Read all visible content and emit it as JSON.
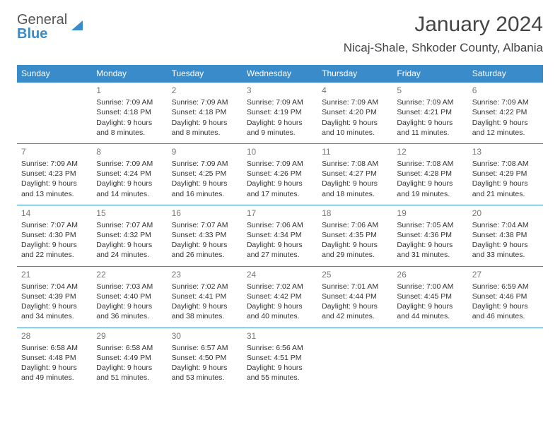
{
  "logo": {
    "line1": "General",
    "line2": "Blue"
  },
  "title": "January 2024",
  "location": "Nicaj-Shale, Shkoder County, Albania",
  "daynames": [
    "Sunday",
    "Monday",
    "Tuesday",
    "Wednesday",
    "Thursday",
    "Friday",
    "Saturday"
  ],
  "colors": {
    "header_bg": "#3a8bc9",
    "header_text": "#ffffff",
    "border": "#3a8bc9",
    "text": "#333333",
    "daynum": "#777777"
  },
  "days": [
    {
      "n": "",
      "sr": "",
      "ss": "",
      "dl1": "",
      "dl2": ""
    },
    {
      "n": "1",
      "sr": "Sunrise: 7:09 AM",
      "ss": "Sunset: 4:18 PM",
      "dl1": "Daylight: 9 hours",
      "dl2": "and 8 minutes."
    },
    {
      "n": "2",
      "sr": "Sunrise: 7:09 AM",
      "ss": "Sunset: 4:18 PM",
      "dl1": "Daylight: 9 hours",
      "dl2": "and 8 minutes."
    },
    {
      "n": "3",
      "sr": "Sunrise: 7:09 AM",
      "ss": "Sunset: 4:19 PM",
      "dl1": "Daylight: 9 hours",
      "dl2": "and 9 minutes."
    },
    {
      "n": "4",
      "sr": "Sunrise: 7:09 AM",
      "ss": "Sunset: 4:20 PM",
      "dl1": "Daylight: 9 hours",
      "dl2": "and 10 minutes."
    },
    {
      "n": "5",
      "sr": "Sunrise: 7:09 AM",
      "ss": "Sunset: 4:21 PM",
      "dl1": "Daylight: 9 hours",
      "dl2": "and 11 minutes."
    },
    {
      "n": "6",
      "sr": "Sunrise: 7:09 AM",
      "ss": "Sunset: 4:22 PM",
      "dl1": "Daylight: 9 hours",
      "dl2": "and 12 minutes."
    },
    {
      "n": "7",
      "sr": "Sunrise: 7:09 AM",
      "ss": "Sunset: 4:23 PM",
      "dl1": "Daylight: 9 hours",
      "dl2": "and 13 minutes."
    },
    {
      "n": "8",
      "sr": "Sunrise: 7:09 AM",
      "ss": "Sunset: 4:24 PM",
      "dl1": "Daylight: 9 hours",
      "dl2": "and 14 minutes."
    },
    {
      "n": "9",
      "sr": "Sunrise: 7:09 AM",
      "ss": "Sunset: 4:25 PM",
      "dl1": "Daylight: 9 hours",
      "dl2": "and 16 minutes."
    },
    {
      "n": "10",
      "sr": "Sunrise: 7:09 AM",
      "ss": "Sunset: 4:26 PM",
      "dl1": "Daylight: 9 hours",
      "dl2": "and 17 minutes."
    },
    {
      "n": "11",
      "sr": "Sunrise: 7:08 AM",
      "ss": "Sunset: 4:27 PM",
      "dl1": "Daylight: 9 hours",
      "dl2": "and 18 minutes."
    },
    {
      "n": "12",
      "sr": "Sunrise: 7:08 AM",
      "ss": "Sunset: 4:28 PM",
      "dl1": "Daylight: 9 hours",
      "dl2": "and 19 minutes."
    },
    {
      "n": "13",
      "sr": "Sunrise: 7:08 AM",
      "ss": "Sunset: 4:29 PM",
      "dl1": "Daylight: 9 hours",
      "dl2": "and 21 minutes."
    },
    {
      "n": "14",
      "sr": "Sunrise: 7:07 AM",
      "ss": "Sunset: 4:30 PM",
      "dl1": "Daylight: 9 hours",
      "dl2": "and 22 minutes."
    },
    {
      "n": "15",
      "sr": "Sunrise: 7:07 AM",
      "ss": "Sunset: 4:32 PM",
      "dl1": "Daylight: 9 hours",
      "dl2": "and 24 minutes."
    },
    {
      "n": "16",
      "sr": "Sunrise: 7:07 AM",
      "ss": "Sunset: 4:33 PM",
      "dl1": "Daylight: 9 hours",
      "dl2": "and 26 minutes."
    },
    {
      "n": "17",
      "sr": "Sunrise: 7:06 AM",
      "ss": "Sunset: 4:34 PM",
      "dl1": "Daylight: 9 hours",
      "dl2": "and 27 minutes."
    },
    {
      "n": "18",
      "sr": "Sunrise: 7:06 AM",
      "ss": "Sunset: 4:35 PM",
      "dl1": "Daylight: 9 hours",
      "dl2": "and 29 minutes."
    },
    {
      "n": "19",
      "sr": "Sunrise: 7:05 AM",
      "ss": "Sunset: 4:36 PM",
      "dl1": "Daylight: 9 hours",
      "dl2": "and 31 minutes."
    },
    {
      "n": "20",
      "sr": "Sunrise: 7:04 AM",
      "ss": "Sunset: 4:38 PM",
      "dl1": "Daylight: 9 hours",
      "dl2": "and 33 minutes."
    },
    {
      "n": "21",
      "sr": "Sunrise: 7:04 AM",
      "ss": "Sunset: 4:39 PM",
      "dl1": "Daylight: 9 hours",
      "dl2": "and 34 minutes."
    },
    {
      "n": "22",
      "sr": "Sunrise: 7:03 AM",
      "ss": "Sunset: 4:40 PM",
      "dl1": "Daylight: 9 hours",
      "dl2": "and 36 minutes."
    },
    {
      "n": "23",
      "sr": "Sunrise: 7:02 AM",
      "ss": "Sunset: 4:41 PM",
      "dl1": "Daylight: 9 hours",
      "dl2": "and 38 minutes."
    },
    {
      "n": "24",
      "sr": "Sunrise: 7:02 AM",
      "ss": "Sunset: 4:42 PM",
      "dl1": "Daylight: 9 hours",
      "dl2": "and 40 minutes."
    },
    {
      "n": "25",
      "sr": "Sunrise: 7:01 AM",
      "ss": "Sunset: 4:44 PM",
      "dl1": "Daylight: 9 hours",
      "dl2": "and 42 minutes."
    },
    {
      "n": "26",
      "sr": "Sunrise: 7:00 AM",
      "ss": "Sunset: 4:45 PM",
      "dl1": "Daylight: 9 hours",
      "dl2": "and 44 minutes."
    },
    {
      "n": "27",
      "sr": "Sunrise: 6:59 AM",
      "ss": "Sunset: 4:46 PM",
      "dl1": "Daylight: 9 hours",
      "dl2": "and 46 minutes."
    },
    {
      "n": "28",
      "sr": "Sunrise: 6:58 AM",
      "ss": "Sunset: 4:48 PM",
      "dl1": "Daylight: 9 hours",
      "dl2": "and 49 minutes."
    },
    {
      "n": "29",
      "sr": "Sunrise: 6:58 AM",
      "ss": "Sunset: 4:49 PM",
      "dl1": "Daylight: 9 hours",
      "dl2": "and 51 minutes."
    },
    {
      "n": "30",
      "sr": "Sunrise: 6:57 AM",
      "ss": "Sunset: 4:50 PM",
      "dl1": "Daylight: 9 hours",
      "dl2": "and 53 minutes."
    },
    {
      "n": "31",
      "sr": "Sunrise: 6:56 AM",
      "ss": "Sunset: 4:51 PM",
      "dl1": "Daylight: 9 hours",
      "dl2": "and 55 minutes."
    },
    {
      "n": "",
      "sr": "",
      "ss": "",
      "dl1": "",
      "dl2": ""
    },
    {
      "n": "",
      "sr": "",
      "ss": "",
      "dl1": "",
      "dl2": ""
    },
    {
      "n": "",
      "sr": "",
      "ss": "",
      "dl1": "",
      "dl2": ""
    }
  ]
}
